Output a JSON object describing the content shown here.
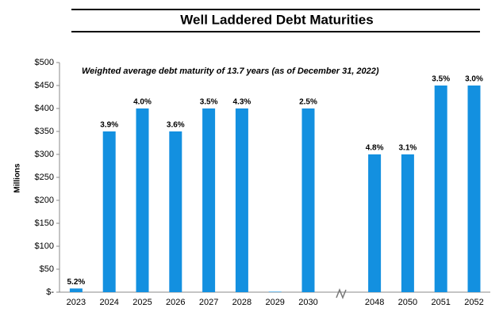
{
  "chart_data": {
    "type": "bar",
    "title": "Well Laddered Debt Maturities",
    "annotation": "Weighted average debt maturity of 13.7 years (as of December 31, 2022)",
    "y_label": "Millions",
    "categories": [
      "2023",
      "2024",
      "2025",
      "2026",
      "2027",
      "2028",
      "2029",
      "2030",
      null,
      "2048",
      "2050",
      "2051",
      "2052"
    ],
    "values": [
      8,
      350,
      400,
      350,
      400,
      400,
      1,
      400,
      null,
      300,
      300,
      450,
      450
    ],
    "percent_labels": [
      "5.2%",
      "3.9%",
      "4.0%",
      "3.6%",
      "3.5%",
      "4.3%",
      null,
      "2.5%",
      null,
      "4.8%",
      "3.1%",
      "3.5%",
      "3.0%"
    ],
    "color": "#1390e0",
    "ylim": [
      0,
      500
    ],
    "yticks": [
      {
        "value": 0,
        "label": "$-"
      },
      {
        "value": 50,
        "label": "$50"
      },
      {
        "value": 100,
        "label": "$100"
      },
      {
        "value": 150,
        "label": "$150"
      },
      {
        "value": 200,
        "label": "$200"
      },
      {
        "value": 250,
        "label": "$250"
      },
      {
        "value": 300,
        "label": "$300"
      },
      {
        "value": 350,
        "label": "$350"
      },
      {
        "value": 400,
        "label": "$400"
      },
      {
        "value": 450,
        "label": "$450"
      },
      {
        "value": 500,
        "label": "$500"
      }
    ],
    "grid": false
  }
}
